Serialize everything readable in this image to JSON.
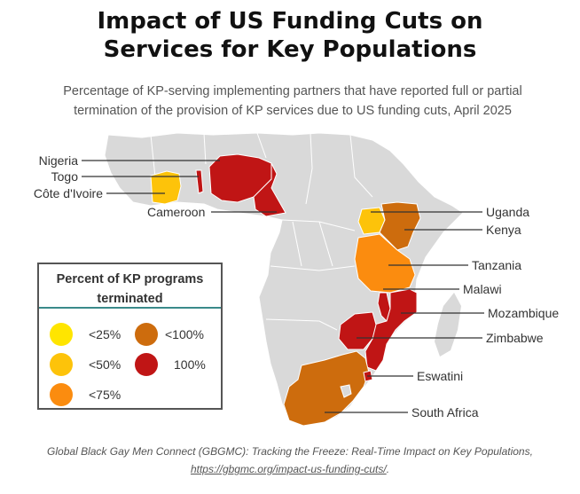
{
  "title_line1": "Impact of US Funding Cuts on",
  "title_line2": "Services for Key Populations",
  "subtitle": "Percentage of KP-serving implementing partners that have reported full or partial termination of the provision of KP services due to US funding cuts, April 2025",
  "colors": {
    "land": "#d9d9d9",
    "border": "#ffffff",
    "lt25": "#ffe500",
    "lt50": "#fdc30a",
    "lt75": "#fb8c0f",
    "lt100": "#cd6c0d",
    "full": "#c01515"
  },
  "countries": [
    {
      "name": "Nigeria",
      "category": "100%"
    },
    {
      "name": "Togo",
      "category": "100%"
    },
    {
      "name": "Côte d'Ivoire",
      "category": "<50%"
    },
    {
      "name": "Cameroon",
      "category": "100%"
    },
    {
      "name": "Uganda",
      "category": "<50%"
    },
    {
      "name": "Kenya",
      "category": "<100%"
    },
    {
      "name": "Tanzania",
      "category": "<75%"
    },
    {
      "name": "Malawi",
      "category": "100%"
    },
    {
      "name": "Mozambique",
      "category": "100%"
    },
    {
      "name": "Zimbabwe",
      "category": "100%"
    },
    {
      "name": "Eswatini",
      "category": "100%"
    },
    {
      "name": "South Africa",
      "category": "<100%"
    }
  ],
  "legend": {
    "title": "Percent of KP programs terminated",
    "items": [
      {
        "label": "<25%",
        "color": "#ffe500"
      },
      {
        "label": "<50%",
        "color": "#fdc30a"
      },
      {
        "label": "<75%",
        "color": "#fb8c0f"
      },
      {
        "label": "<100%",
        "color": "#cd6c0d"
      },
      {
        "label": "100%",
        "color": "#c01515"
      }
    ]
  },
  "footer": {
    "source": "Global Black Gay Men Connect (GBGMC): Tracking the Freeze: Real-Time Impact on Key Populations,",
    "url": "https://gbgmc.org/impact-us-funding-cuts/",
    "end": "."
  }
}
